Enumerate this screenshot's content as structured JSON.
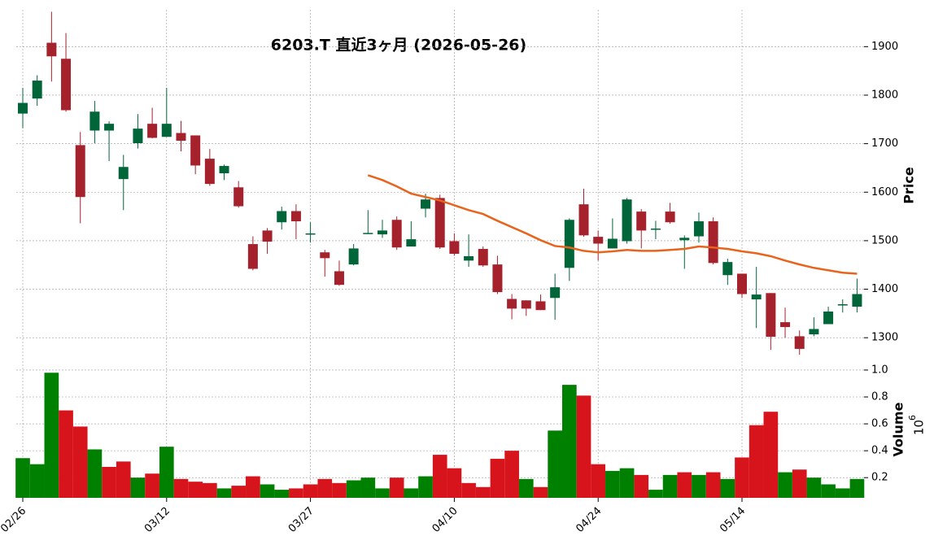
{
  "chart_data": {
    "type": "candlestick",
    "title": "6203.T  直近3ヶ月  (2026-05-26)",
    "categories": [
      "02/26",
      null,
      null,
      null,
      null,
      null,
      null,
      null,
      null,
      null,
      "03/12",
      null,
      null,
      null,
      null,
      null,
      null,
      null,
      null,
      null,
      "03/27",
      null,
      null,
      null,
      null,
      null,
      null,
      null,
      null,
      null,
      "04/10",
      null,
      null,
      null,
      null,
      null,
      null,
      null,
      null,
      null,
      "04/24",
      null,
      null,
      null,
      null,
      null,
      null,
      null,
      null,
      null,
      "05/14",
      null,
      null,
      null,
      null,
      null,
      null,
      null,
      null
    ],
    "open": [
      1762,
      1793,
      1908,
      1875,
      1697,
      1727,
      1727,
      1627,
      1701,
      1741,
      1714,
      1722,
      1717,
      1669,
      1639,
      1610,
      1493,
      1521,
      1538,
      1561,
      1514,
      1476,
      1437,
      1451,
      1514,
      1513,
      1543,
      1488,
      1566,
      1588,
      1499,
      1459,
      1483,
      1451,
      1380,
      1377,
      1375,
      1382,
      1444,
      1575,
      1508,
      1484,
      1499,
      1560,
      1523,
      1560,
      1501,
      1509,
      1540,
      1429,
      1432,
      1379,
      1392,
      1332,
      1303,
      1307,
      1328,
      1367,
      1364
    ],
    "high": [
      1815,
      1841,
      1972,
      1928,
      1724,
      1788,
      1746,
      1677,
      1761,
      1774,
      1815,
      1747,
      1717,
      1689,
      1657,
      1623,
      1509,
      1526,
      1570,
      1575,
      1538,
      1481,
      1459,
      1493,
      1563,
      1543,
      1550,
      1540,
      1597,
      1595,
      1515,
      1513,
      1488,
      1469,
      1390,
      1377,
      1389,
      1432,
      1546,
      1607,
      1521,
      1546,
      1588,
      1565,
      1541,
      1578,
      1511,
      1558,
      1548,
      1463,
      1432,
      1446,
      1392,
      1362,
      1315,
      1342,
      1364,
      1379,
      1422
    ],
    "low": [
      1732,
      1778,
      1828,
      1766,
      1536,
      1701,
      1664,
      1563,
      1690,
      1711,
      1714,
      1684,
      1637,
      1613,
      1625,
      1568,
      1439,
      1473,
      1523,
      1503,
      1496,
      1426,
      1407,
      1449,
      1514,
      1506,
      1481,
      1488,
      1548,
      1483,
      1469,
      1446,
      1446,
      1390,
      1338,
      1345,
      1357,
      1337,
      1417,
      1508,
      1459,
      1484,
      1494,
      1484,
      1503,
      1535,
      1442,
      1496,
      1451,
      1409,
      1382,
      1320,
      1275,
      1300,
      1265,
      1303,
      1328,
      1352,
      1352
    ],
    "close": [
      1784,
      1830,
      1880,
      1769,
      1590,
      1766,
      1741,
      1652,
      1731,
      1712,
      1741,
      1706,
      1655,
      1617,
      1654,
      1571,
      1442,
      1498,
      1561,
      1540,
      1515,
      1464,
      1409,
      1484,
      1516,
      1521,
      1486,
      1503,
      1585,
      1486,
      1473,
      1468,
      1449,
      1394,
      1360,
      1360,
      1357,
      1404,
      1543,
      1511,
      1494,
      1504,
      1585,
      1521,
      1525,
      1538,
      1506,
      1540,
      1454,
      1456,
      1390,
      1389,
      1302,
      1322,
      1277,
      1318,
      1354,
      1369,
      1390
    ],
    "up_color": "#00663a",
    "down_color": "#a5222c",
    "ylim": [
      1250,
      1976
    ],
    "yticks": [
      1300,
      1400,
      1500,
      1600,
      1700,
      1800,
      1900
    ],
    "ylabel": "Price",
    "grid": true,
    "ma": {
      "color": "#e8641c",
      "values": [
        null,
        null,
        null,
        null,
        null,
        null,
        null,
        null,
        null,
        null,
        null,
        null,
        null,
        null,
        null,
        null,
        null,
        null,
        null,
        null,
        null,
        null,
        null,
        null,
        1635,
        1625,
        1612,
        1597,
        1590,
        1583,
        1573,
        1563,
        1555,
        1541,
        1528,
        1515,
        1501,
        1489,
        1486,
        1479,
        1476,
        1478,
        1481,
        1479,
        1479,
        1481,
        1483,
        1488,
        1486,
        1483,
        1478,
        1474,
        1468,
        1459,
        1451,
        1444,
        1439,
        1434,
        1432
      ]
    },
    "volume": {
      "ylabel": "Volume",
      "multiplier_base": "10",
      "multiplier_exponent": "6",
      "up_color": "#008000",
      "down_color": "#d7141c",
      "ylim": [
        0.05,
        1.06
      ],
      "yticks": [
        0.2,
        0.4,
        0.6,
        0.8,
        {
          "value": 1,
          "label": "1.0"
        }
      ],
      "values": [
        0.345,
        0.3,
        0.98,
        0.7,
        0.58,
        0.41,
        0.28,
        0.32,
        0.2,
        0.23,
        0.43,
        0.19,
        0.17,
        0.16,
        0.12,
        0.14,
        0.21,
        0.15,
        0.11,
        0.12,
        0.15,
        0.19,
        0.16,
        0.18,
        0.2,
        0.12,
        0.2,
        0.12,
        0.21,
        0.37,
        0.27,
        0.16,
        0.13,
        0.34,
        0.4,
        0.19,
        0.13,
        0.55,
        0.89,
        0.81,
        0.3,
        0.25,
        0.27,
        0.22,
        0.11,
        0.22,
        0.24,
        0.22,
        0.24,
        0.19,
        0.35,
        0.59,
        0.69,
        0.24,
        0.26,
        0.2,
        0.15,
        0.12,
        0.19
      ]
    }
  }
}
